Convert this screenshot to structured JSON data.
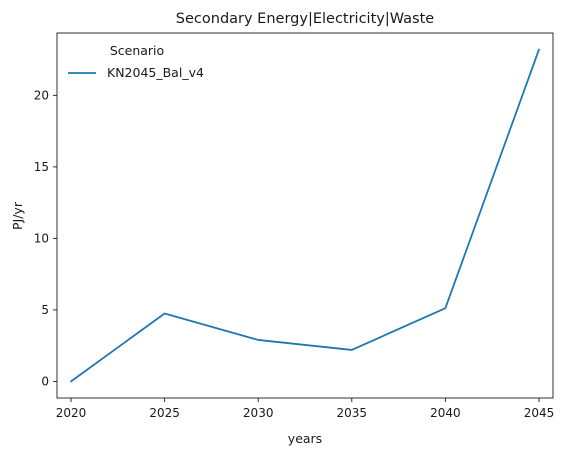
{
  "chart_data": {
    "type": "line",
    "title": "Secondary Energy|Electricity|Waste",
    "xlabel": "years",
    "ylabel": "PJ/yr",
    "x": [
      2020,
      2025,
      2030,
      2035,
      2040,
      2045
    ],
    "xticks": [
      "2020",
      "2025",
      "2030",
      "2035",
      "2040",
      "2045"
    ],
    "yticks": [
      "0",
      "5",
      "10",
      "15",
      "20"
    ],
    "xlim": [
      2019.25,
      2045.75
    ],
    "ylim": [
      -1.16,
      24.36
    ],
    "grid": false,
    "legend": {
      "title": "Scenario",
      "placement": "top-left"
    },
    "series": [
      {
        "name": "KN2045_Bal_v4",
        "color": "#1f77b4",
        "values": [
          0.0,
          4.75,
          2.9,
          2.2,
          5.12,
          23.2
        ]
      }
    ]
  }
}
